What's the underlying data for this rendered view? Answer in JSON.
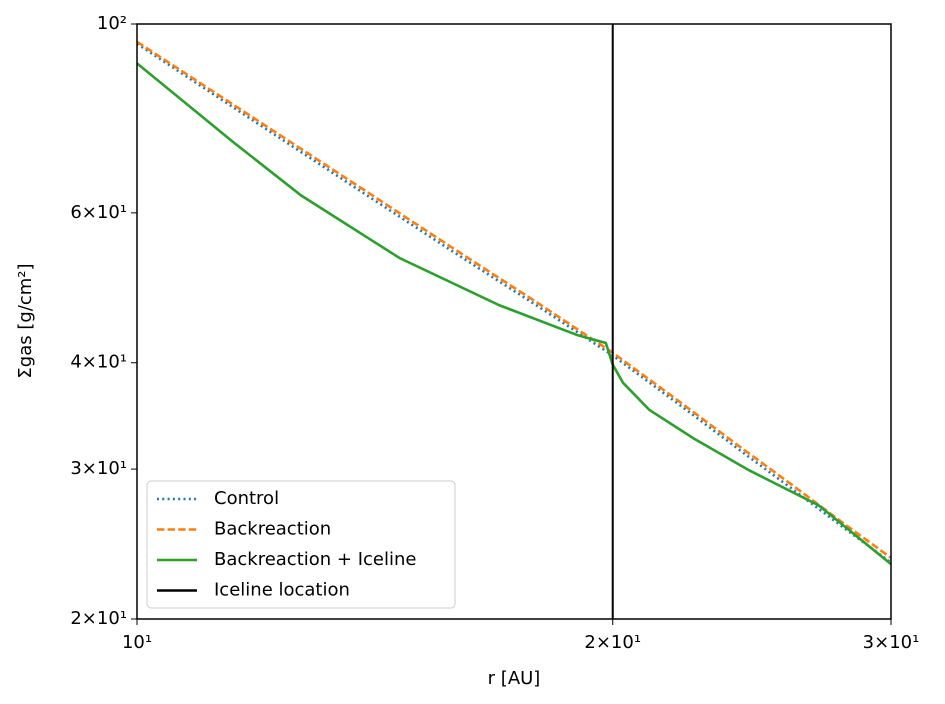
{
  "chart_data": {
    "type": "line",
    "xlabel": "r [AU]",
    "ylabel": "Σgas [g/cm²]",
    "xlog": true,
    "ylog": true,
    "xlim": [
      10,
      30
    ],
    "ylim": [
      20,
      100
    ],
    "xticks": [
      {
        "value": 10,
        "label": "10¹"
      },
      {
        "value": 20,
        "label": "2×10¹"
      },
      {
        "value": 30,
        "label": "3×10¹"
      }
    ],
    "yticks": [
      {
        "value": 20,
        "label": "2×10¹"
      },
      {
        "value": 30,
        "label": "3×10¹"
      },
      {
        "value": 40,
        "label": "4×10¹"
      },
      {
        "value": 60,
        "label": "6×10¹"
      },
      {
        "value": 100,
        "label": "10²"
      }
    ],
    "legend": "lower left",
    "series": [
      {
        "name": "Control",
        "color": "#1f77b4",
        "style": "dotted",
        "x": [
          10,
          12,
          14,
          16,
          18,
          20,
          22,
          24,
          26,
          28,
          30
        ],
        "values": [
          94.8,
          75.8,
          62.8,
          53.4,
          46.4,
          40.8,
          35.8,
          31.7,
          28.4,
          25.6,
          23.3
        ]
      },
      {
        "name": "Backreaction",
        "color": "#ff7f0e",
        "style": "dashed",
        "x": [
          10,
          12,
          14,
          16,
          18,
          20,
          22,
          24,
          26,
          28,
          30
        ],
        "values": [
          95.3,
          76.4,
          63.4,
          53.9,
          46.8,
          41.1,
          36.1,
          32.0,
          28.7,
          25.9,
          23.6
        ]
      },
      {
        "name": "Backreaction + Iceline",
        "color": "#2ca02c",
        "style": "solid",
        "x": [
          10,
          11.5,
          12.7,
          14.66,
          16.97,
          19.0,
          19.8,
          20.0,
          20.3,
          21.1,
          22.5,
          24.4,
          27,
          30
        ],
        "values": [
          89.9,
          72.7,
          62.9,
          53.1,
          46.7,
          43.1,
          42.2,
          39.8,
          37.9,
          35.2,
          32.6,
          29.9,
          27.2,
          23.2
        ]
      }
    ],
    "vline": {
      "name": "Iceline location",
      "color": "#000000",
      "x": 20
    }
  }
}
